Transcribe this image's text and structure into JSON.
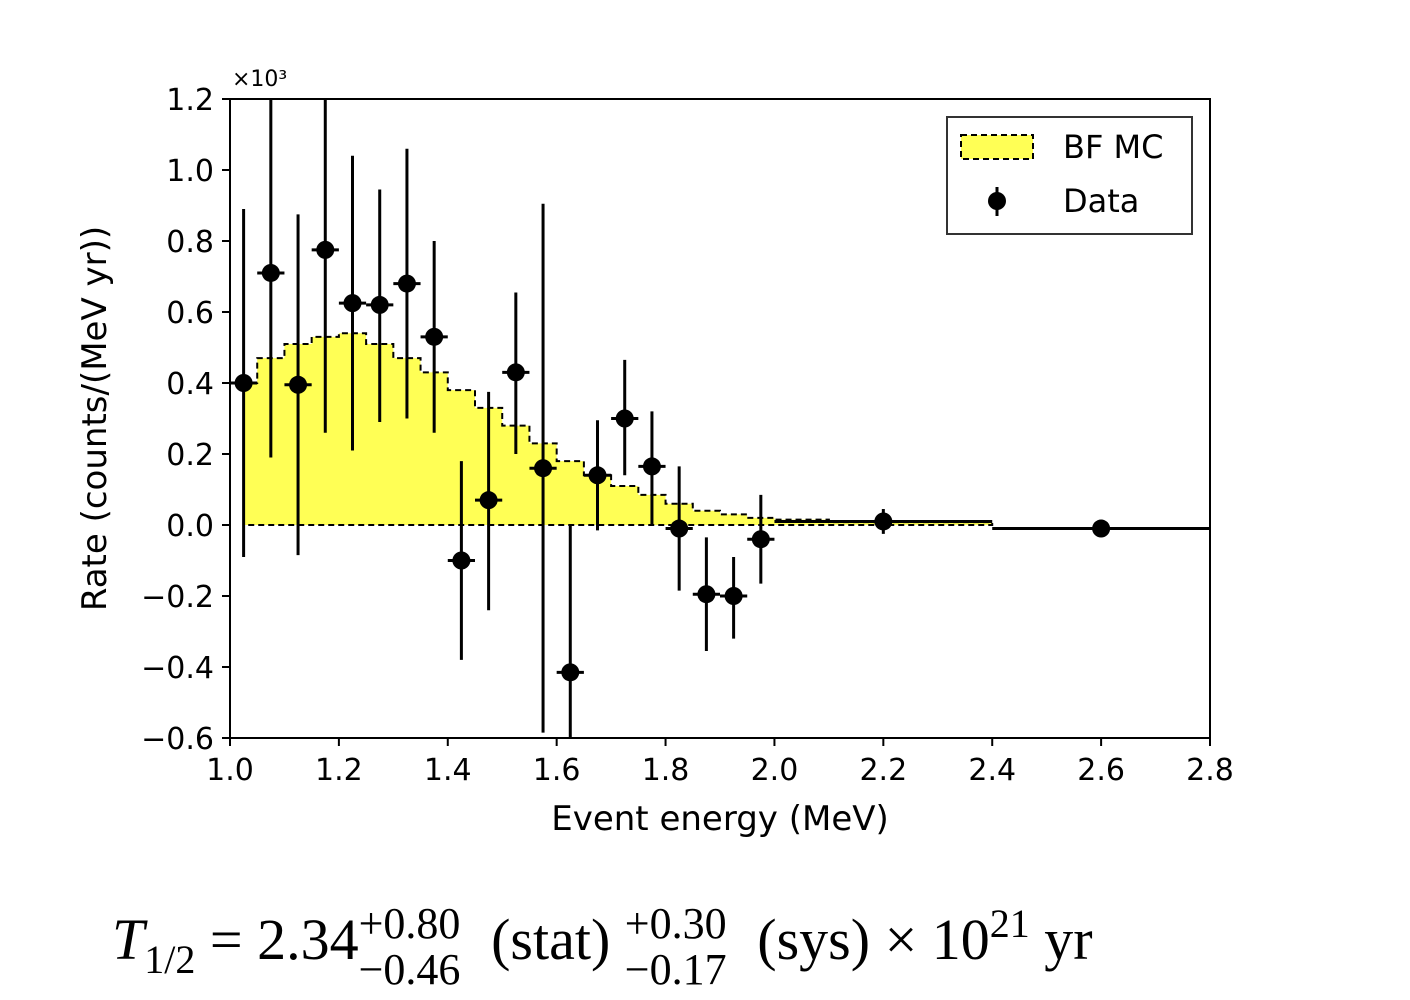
{
  "chart_data": {
    "type": "bar",
    "xlabel": "Event energy (MeV)",
    "ylabel": "Rate (counts/(MeV yr))",
    "y_multiplier": "×10³",
    "xlim": [
      1.0,
      2.8
    ],
    "ylim": [
      -0.6,
      1.2
    ],
    "xticks": [
      1.0,
      1.2,
      1.4,
      1.6,
      1.8,
      2.0,
      2.2,
      2.4,
      2.6,
      2.8
    ],
    "xtick_labels": [
      "1.0",
      "1.2",
      "1.4",
      "1.6",
      "1.8",
      "2.0",
      "2.2",
      "2.4",
      "2.6",
      "2.8"
    ],
    "yticks": [
      -0.6,
      -0.4,
      -0.2,
      0.0,
      0.2,
      0.4,
      0.6,
      0.8,
      1.0,
      1.2
    ],
    "ytick_labels": [
      "−0.6",
      "−0.4",
      "−0.2",
      "0.0",
      "0.2",
      "0.4",
      "0.6",
      "0.8",
      "1.0",
      "1.2"
    ],
    "legend": {
      "placement": "top-right",
      "entries": [
        "BF MC",
        "Data"
      ]
    },
    "grid": false,
    "series": [
      {
        "name": "BF MC",
        "kind": "step-histogram",
        "fill_color": "#ffff55",
        "edge_color": "#000000",
        "bin_edges": [
          1.025,
          1.05,
          1.1,
          1.15,
          1.2,
          1.25,
          1.3,
          1.35,
          1.4,
          1.45,
          1.5,
          1.55,
          1.6,
          1.65,
          1.7,
          1.75,
          1.8,
          1.85,
          1.9,
          1.95,
          2.0,
          2.1,
          2.4
        ],
        "values": [
          0.4,
          0.47,
          0.51,
          0.53,
          0.54,
          0.51,
          0.47,
          0.43,
          0.38,
          0.33,
          0.28,
          0.23,
          0.18,
          0.14,
          0.11,
          0.085,
          0.06,
          0.04,
          0.03,
          0.02,
          0.015,
          0.008
        ]
      },
      {
        "name": "Data",
        "kind": "errorbar",
        "color": "#000000",
        "points": [
          {
            "x": 1.025,
            "y": 0.4,
            "xerr": 0.025,
            "ylo": -0.09,
            "yhi": 0.89
          },
          {
            "x": 1.075,
            "y": 0.71,
            "xerr": 0.025,
            "ylo": 0.19,
            "yhi": 1.23
          },
          {
            "x": 1.125,
            "y": 0.395,
            "xerr": 0.025,
            "ylo": -0.085,
            "yhi": 0.875
          },
          {
            "x": 1.175,
            "y": 0.775,
            "xerr": 0.025,
            "ylo": 0.26,
            "yhi": 1.29
          },
          {
            "x": 1.225,
            "y": 0.625,
            "xerr": 0.025,
            "ylo": 0.21,
            "yhi": 1.04
          },
          {
            "x": 1.275,
            "y": 0.62,
            "xerr": 0.025,
            "ylo": 0.29,
            "yhi": 0.945
          },
          {
            "x": 1.325,
            "y": 0.68,
            "xerr": 0.025,
            "ylo": 0.3,
            "yhi": 1.06
          },
          {
            "x": 1.375,
            "y": 0.53,
            "xerr": 0.025,
            "ylo": 0.26,
            "yhi": 0.8
          },
          {
            "x": 1.425,
            "y": -0.1,
            "xerr": 0.025,
            "ylo": -0.38,
            "yhi": 0.18
          },
          {
            "x": 1.475,
            "y": 0.07,
            "xerr": 0.025,
            "ylo": -0.24,
            "yhi": 0.375
          },
          {
            "x": 1.525,
            "y": 0.43,
            "xerr": 0.025,
            "ylo": 0.2,
            "yhi": 0.655
          },
          {
            "x": 1.575,
            "y": 0.16,
            "xerr": 0.025,
            "ylo": -0.585,
            "yhi": 0.905
          },
          {
            "x": 1.625,
            "y": -0.415,
            "xerr": 0.025,
            "ylo": -0.65,
            "yhi": 0.0
          },
          {
            "x": 1.675,
            "y": 0.14,
            "xerr": 0.025,
            "ylo": -0.015,
            "yhi": 0.295
          },
          {
            "x": 1.725,
            "y": 0.3,
            "xerr": 0.025,
            "ylo": 0.14,
            "yhi": 0.465
          },
          {
            "x": 1.775,
            "y": 0.165,
            "xerr": 0.025,
            "ylo": 0.0,
            "yhi": 0.32
          },
          {
            "x": 1.825,
            "y": -0.01,
            "xerr": 0.025,
            "ylo": -0.185,
            "yhi": 0.165
          },
          {
            "x": 1.875,
            "y": -0.195,
            "xerr": 0.025,
            "ylo": -0.355,
            "yhi": -0.035
          },
          {
            "x": 1.925,
            "y": -0.2,
            "xerr": 0.025,
            "ylo": -0.32,
            "yhi": -0.09
          },
          {
            "x": 1.975,
            "y": -0.04,
            "xerr": 0.025,
            "ylo": -0.165,
            "yhi": 0.085
          },
          {
            "x": 2.2,
            "y": 0.01,
            "xerr": 0.2,
            "ylo": -0.025,
            "yhi": 0.045
          },
          {
            "x": 2.6,
            "y": -0.01,
            "xerr": 0.2,
            "ylo": -0.01,
            "yhi": -0.01
          }
        ]
      }
    ]
  },
  "formula": {
    "symbol": "T",
    "subscript": "1/2",
    "equals_value": "= 2.34",
    "stat_plus": "+0.80",
    "stat_minus": "−0.46",
    "stat_label": "(stat)",
    "sys_plus": "+0.30",
    "sys_minus": "−0.17",
    "sys_label": "(sys)",
    "times_base": "× 10",
    "exponent": "21",
    "unit": "yr"
  }
}
